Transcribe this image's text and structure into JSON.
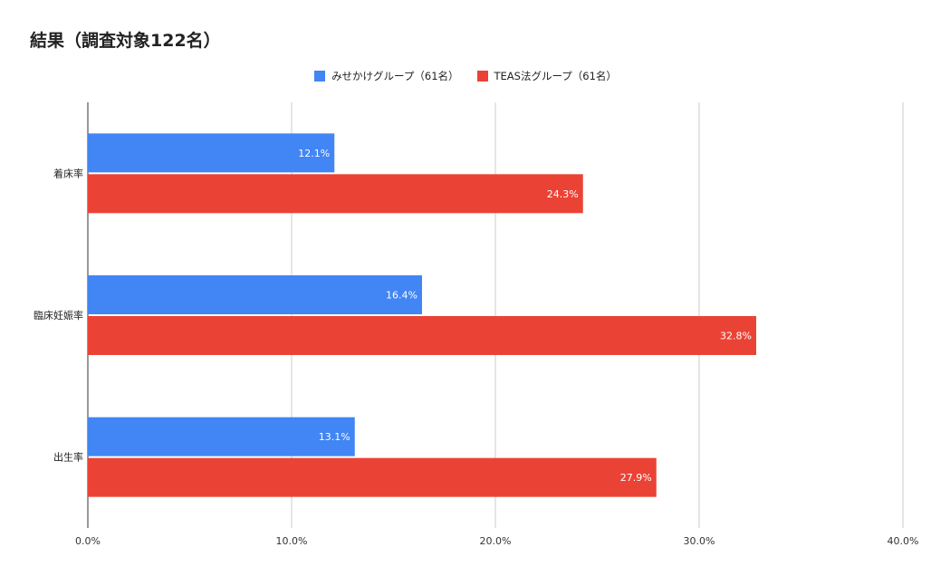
{
  "chart_data": {
    "type": "bar",
    "orientation": "horizontal",
    "title": "結果（調査対象122名）",
    "categories": [
      "着床率",
      "臨床妊娠率",
      "出生率"
    ],
    "series": [
      {
        "name": "みせかけグループ（61名）",
        "color": "#4285f4",
        "values": [
          12.1,
          16.4,
          13.1
        ],
        "labels": [
          "12.1%",
          "16.4%",
          "13.1%"
        ]
      },
      {
        "name": "TEAS法グループ（61名）",
        "color": "#ea4335",
        "values": [
          24.3,
          32.8,
          27.9
        ],
        "labels": [
          "24.3%",
          "32.8%",
          "27.9%"
        ]
      }
    ],
    "xlim": [
      0,
      40
    ],
    "x_ticks": [
      0,
      10,
      20,
      30,
      40
    ],
    "x_tick_labels": [
      "0.0%",
      "10.0%",
      "20.0%",
      "30.0%",
      "40.0%"
    ],
    "grid": true,
    "legend_position": "top-center"
  }
}
